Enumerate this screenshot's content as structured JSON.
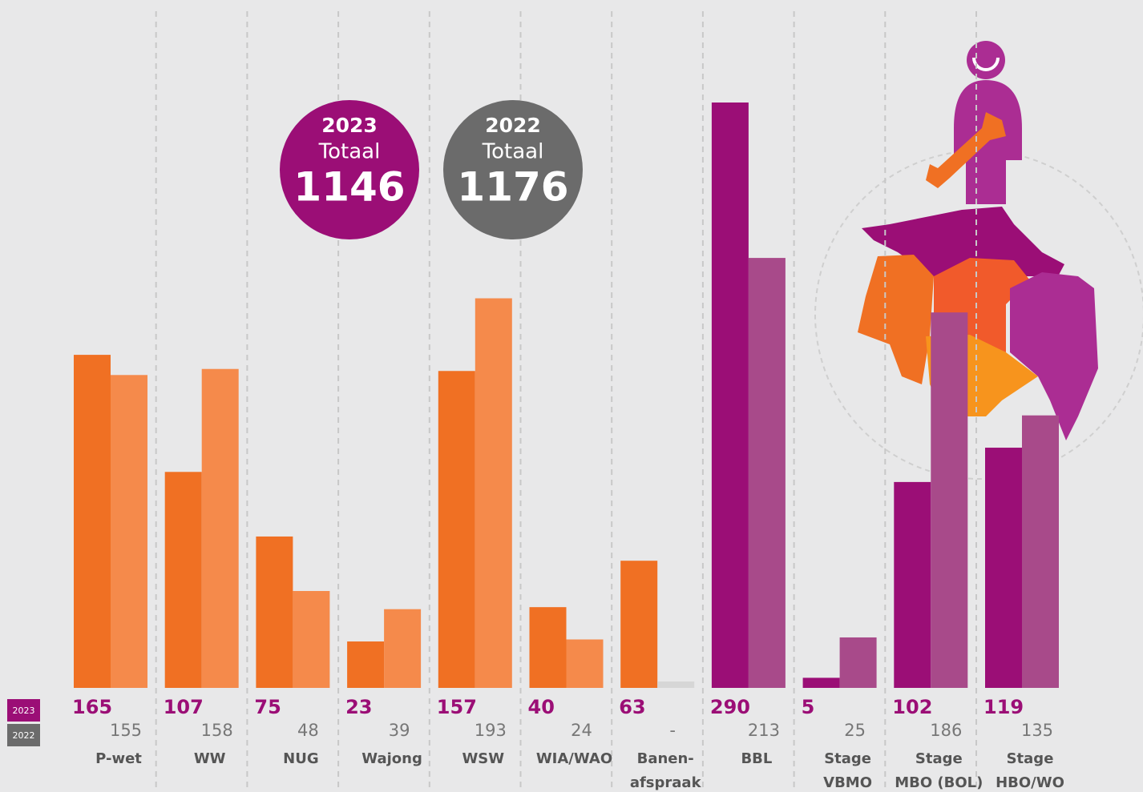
{
  "chart_data": {
    "type": "bar",
    "categories": [
      "P-wet",
      "WW",
      "NUG",
      "Wajong",
      "WSW",
      "WIA/WAO",
      "Banen-\nafspraak",
      "BBL",
      "Stage\nVBMO",
      "Stage\nMBO (BOL)",
      "Stage\nHBO/WO"
    ],
    "series": [
      {
        "name": "2023",
        "color": "#9b0e76",
        "total": 1146,
        "total_color": "#9b0e76",
        "colors": [
          "#f07023",
          "#f07023",
          "#f07023",
          "#f07023",
          "#f07023",
          "#f07023",
          "#f07023",
          "#9b0e76",
          "#9b0e76",
          "#9b0e76",
          "#9b0e76"
        ],
        "values": [
          165,
          107,
          75,
          23,
          157,
          40,
          63,
          290,
          5,
          102,
          119
        ]
      },
      {
        "name": "2022",
        "color": "#6b6b6b",
        "total": 1176,
        "total_color": "#6b6b6b",
        "colors": [
          "#f58a4b",
          "#f58a4b",
          "#f58a4b",
          "#f58a4b",
          "#f58a4b",
          "#f58a4b",
          "#f58a4b",
          "#a84a8a",
          "#a84a8a",
          "#a84a8a",
          "#a84a8a"
        ],
        "values": [
          155,
          158,
          48,
          39,
          193,
          24,
          null,
          213,
          25,
          186,
          135
        ],
        "value_labels": [
          "155",
          "158",
          "48",
          "39",
          "193",
          "24",
          "-",
          "213",
          "25",
          "186",
          "135"
        ]
      }
    ],
    "total_label": "Totaal",
    "ylim": [
      0,
      290
    ]
  }
}
